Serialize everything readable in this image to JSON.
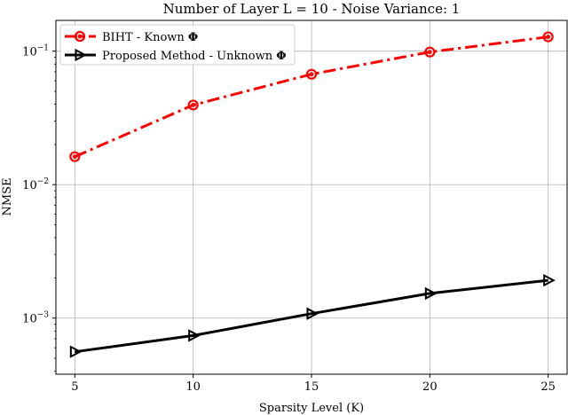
{
  "chart_data": {
    "type": "line",
    "title": "Number of Layer L = 10 - Noise Variance: 1",
    "xlabel": "Sparsity Level (K)",
    "ylabel": "NMSE",
    "yscale": "log",
    "xlim": [
      4.2,
      25.8
    ],
    "ylim": [
      0.00038,
      0.17
    ],
    "grid": true,
    "legend_position": "top-left",
    "x": [
      5,
      10,
      15,
      20,
      25
    ],
    "x_ticks": [
      "5",
      "10",
      "15",
      "20",
      "25"
    ],
    "y_ticks": [
      {
        "base": "10",
        "exp": "−1",
        "value": 0.1
      },
      {
        "base": "10",
        "exp": "−2",
        "value": 0.01
      },
      {
        "base": "10",
        "exp": "−3",
        "value": 0.001
      }
    ],
    "series": [
      {
        "name": "BIHT - Known Φ",
        "name_text": "BIHT - Known ",
        "name_symbol": "Φ",
        "values": [
          0.0162,
          0.0395,
          0.0672,
          0.0985,
          0.128
        ],
        "color": "#ff0000",
        "line_style": "dash-dot",
        "marker": "circle"
      },
      {
        "name": "Proposed Method - Unknown Φ",
        "name_text": "Proposed Method - Unknown ",
        "name_symbol": "Φ",
        "values": [
          0.00056,
          0.00074,
          0.00108,
          0.00153,
          0.00192
        ],
        "color": "#000000",
        "line_style": "solid",
        "marker": "triangle-right"
      }
    ]
  }
}
